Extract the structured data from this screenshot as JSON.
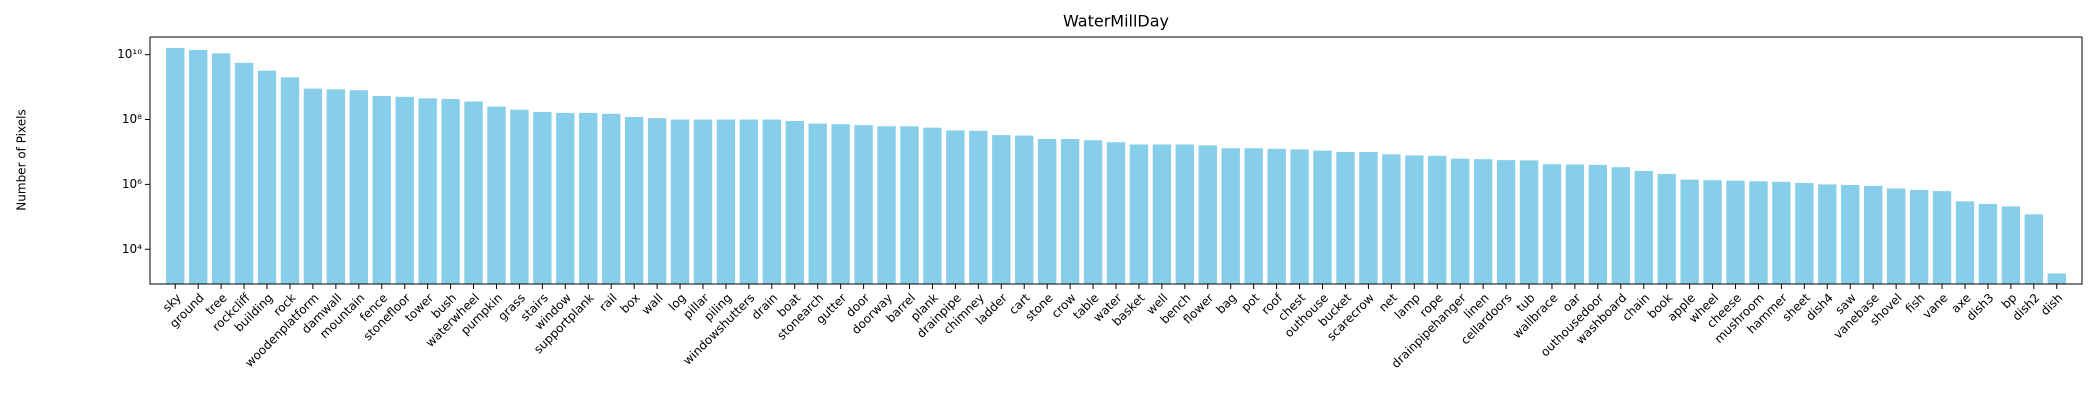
{
  "chart_data": {
    "type": "bar",
    "title": "WaterMillDay",
    "y_label": "Number of Pixels",
    "categories": [
      "sky",
      "ground",
      "tree",
      "rockcliff",
      "building",
      "rock",
      "woodenplatform",
      "damwall",
      "mountain",
      "fence",
      "stonefloor",
      "tower",
      "bush",
      "waterwheel",
      "pumpkin",
      "grass",
      "stairs",
      "window",
      "supportplank",
      "rail",
      "box",
      "wall",
      "log",
      "pillar",
      "piling",
      "windowshutters",
      "drain",
      "boat",
      "stonearch",
      "gutter",
      "door",
      "doorway",
      "barrel",
      "plank",
      "drainpipe",
      "chimney",
      "ladder",
      "cart",
      "stone",
      "crow",
      "table",
      "water",
      "basket",
      "well",
      "bench",
      "flower",
      "bag",
      "pot",
      "roof",
      "chest",
      "outhouse",
      "bucket",
      "scarecrow",
      "net",
      "lamp",
      "rope",
      "drainpipehanger",
      "linen",
      "cellardoors",
      "tub",
      "wallbrace",
      "oar",
      "outhousedoor",
      "washboard",
      "chain",
      "book",
      "apple",
      "wheel",
      "cheese",
      "mushroom",
      "hammer",
      "sheet",
      "dish4",
      "saw",
      "vanebase",
      "shovel",
      "fish",
      "vane",
      "axe",
      "dish3",
      "bp",
      "dish2",
      "dish"
    ],
    "values": [
      16000000000,
      14000000000,
      11000000000,
      5600000000,
      3200000000,
      2000000000,
      900000000,
      850000000,
      800000000,
      530000000,
      500000000,
      450000000,
      430000000,
      360000000,
      250000000,
      200000000,
      170000000,
      160000000,
      160000000,
      150000000,
      120000000,
      110000000,
      100000000,
      100000000,
      100000000,
      100000000,
      100000000,
      90000000,
      75000000,
      72000000,
      67000000,
      62000000,
      62000000,
      56000000,
      46000000,
      45000000,
      33000000,
      32000000,
      25000000,
      25000000,
      23000000,
      20000000,
      17000000,
      17000000,
      17000000,
      16000000,
      13000000,
      13000000,
      12500000,
      12000000,
      11000000,
      10000000,
      10000000,
      8500000,
      7800000,
      7600000,
      6200000,
      6000000,
      5600000,
      5500000,
      4200000,
      4100000,
      4000000,
      3400000,
      2600000,
      2100000,
      1400000,
      1350000,
      1300000,
      1250000,
      1200000,
      1100000,
      1000000,
      960000,
      900000,
      750000,
      680000,
      620000,
      300000,
      250000,
      210000,
      120000,
      1800
    ],
    "color": "#87ceeb",
    "log_scale": true,
    "ylim": [
      850,
      35000000000
    ],
    "yticks": [
      {
        "value": 10000,
        "label": "10⁴"
      },
      {
        "value": 1000000,
        "label": "10⁶"
      },
      {
        "value": 100000000,
        "label": "10⁸"
      },
      {
        "value": 10000000000,
        "label": "10¹⁰"
      }
    ]
  }
}
